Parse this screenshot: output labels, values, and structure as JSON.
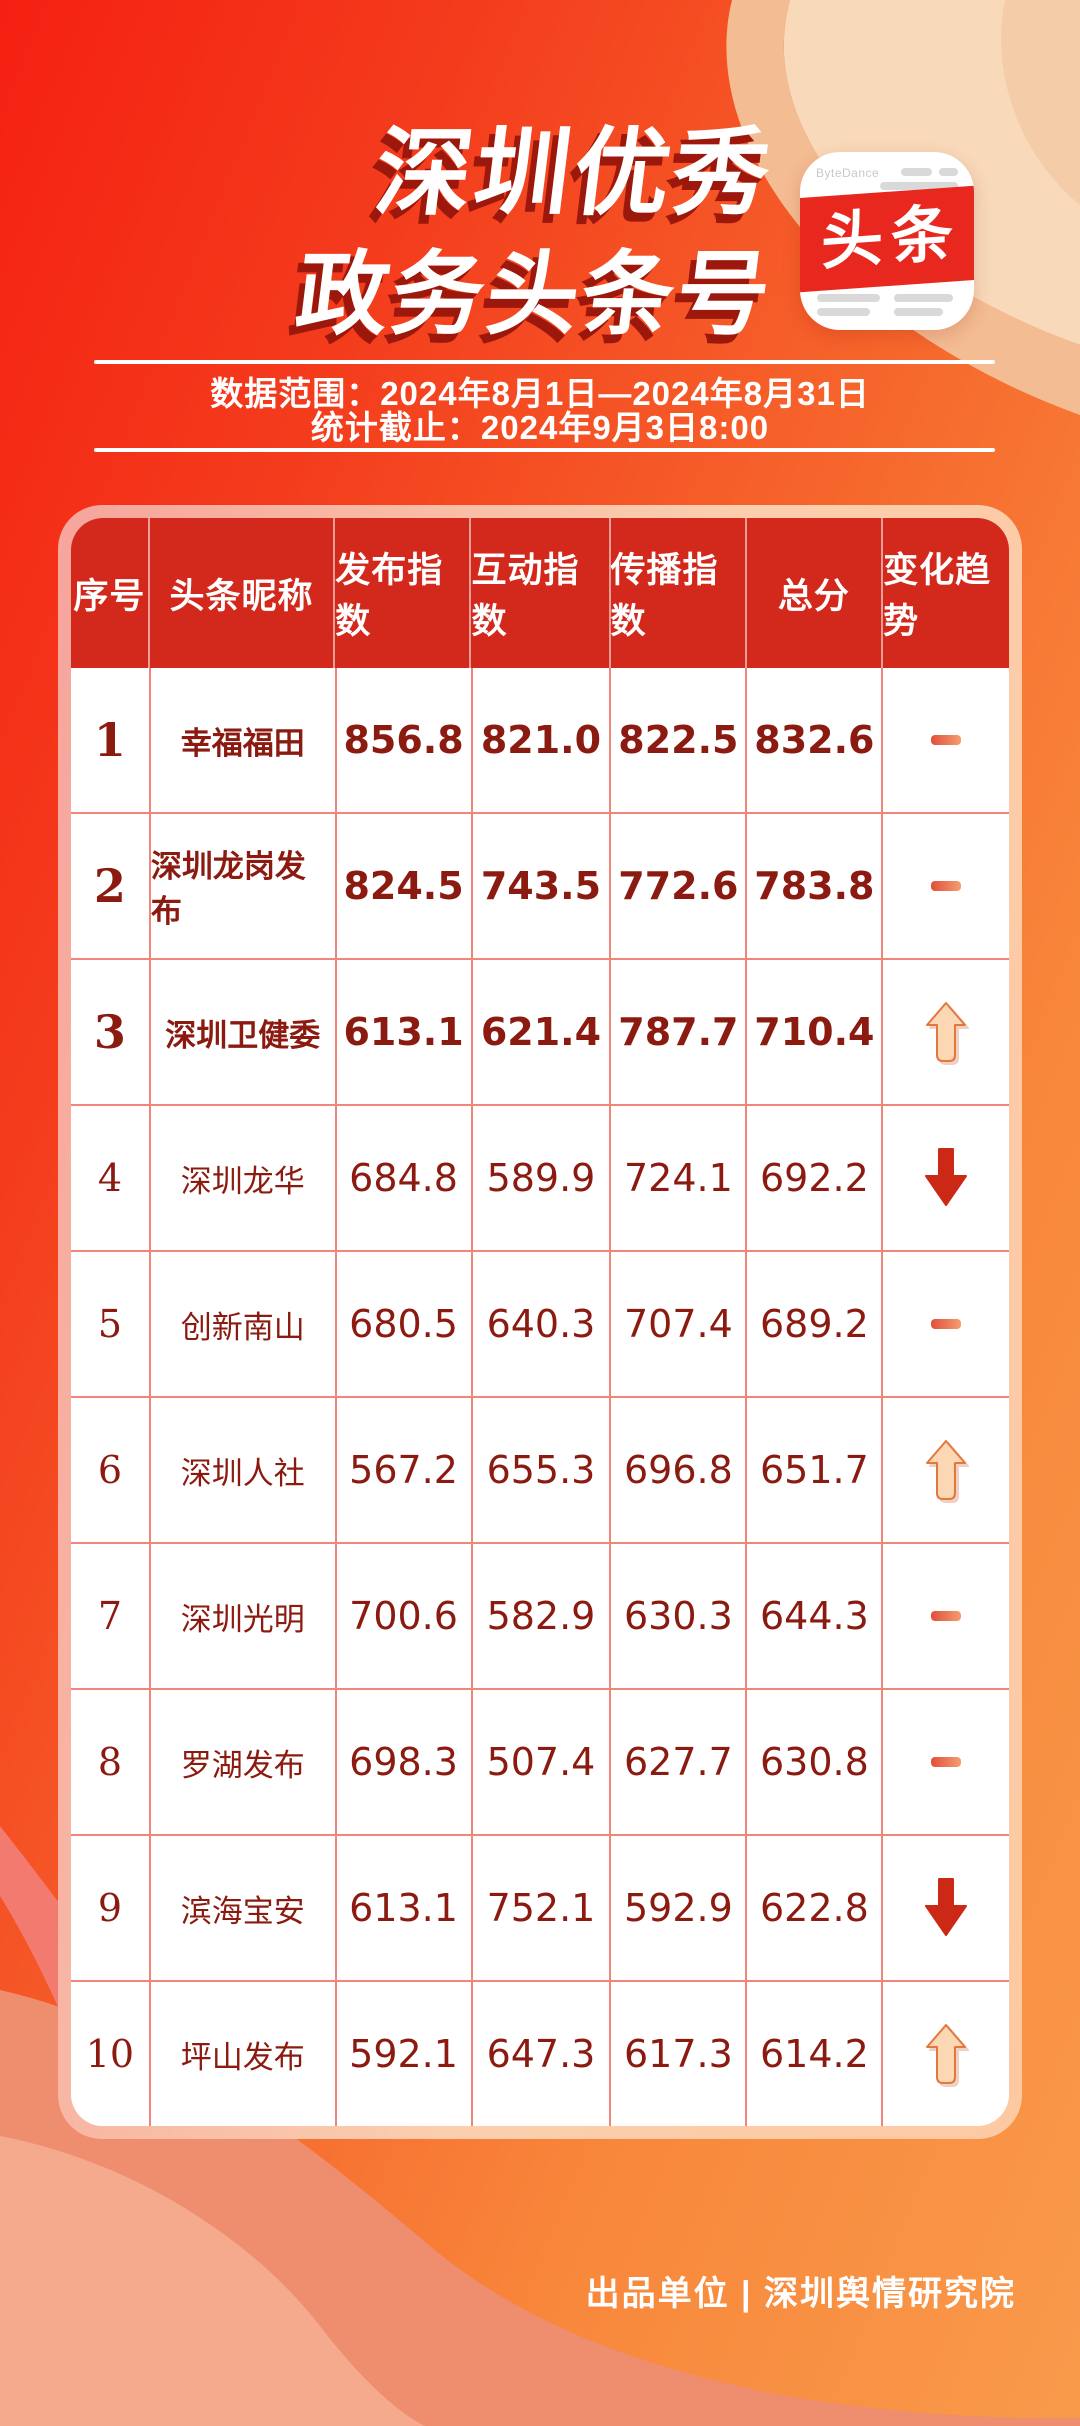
{
  "title": {
    "line1": "深圳优秀",
    "line2": "政务头条号"
  },
  "logo": {
    "badge_text": "头条",
    "brand_text": "ByteDance"
  },
  "meta": {
    "range_label": "数据范围：2024年8月1日—2024年8月31日",
    "cutoff_label": "统计截止：2024年9月3日8:00"
  },
  "chart_data": {
    "type": "table",
    "title": "深圳优秀政务头条号",
    "columns": [
      "序号",
      "头条昵称",
      "发布指数",
      "互动指数",
      "传播指数",
      "总分",
      "变化趋势"
    ],
    "rows": [
      {
        "rank": "1",
        "name": "幸福福田",
        "publish_index": "856.8",
        "interaction_index": "821.0",
        "spread_index": "822.5",
        "total": "832.6",
        "trend": "flat"
      },
      {
        "rank": "2",
        "name": "深圳龙岗发布",
        "publish_index": "824.5",
        "interaction_index": "743.5",
        "spread_index": "772.6",
        "total": "783.8",
        "trend": "flat"
      },
      {
        "rank": "3",
        "name": "深圳卫健委",
        "publish_index": "613.1",
        "interaction_index": "621.4",
        "spread_index": "787.7",
        "total": "710.4",
        "trend": "up"
      },
      {
        "rank": "4",
        "name": "深圳龙华",
        "publish_index": "684.8",
        "interaction_index": "589.9",
        "spread_index": "724.1",
        "total": "692.2",
        "trend": "down"
      },
      {
        "rank": "5",
        "name": "创新南山",
        "publish_index": "680.5",
        "interaction_index": "640.3",
        "spread_index": "707.4",
        "total": "689.2",
        "trend": "flat"
      },
      {
        "rank": "6",
        "name": "深圳人社",
        "publish_index": "567.2",
        "interaction_index": "655.3",
        "spread_index": "696.8",
        "total": "651.7",
        "trend": "up"
      },
      {
        "rank": "7",
        "name": "深圳光明",
        "publish_index": "700.6",
        "interaction_index": "582.9",
        "spread_index": "630.3",
        "total": "644.3",
        "trend": "flat"
      },
      {
        "rank": "8",
        "name": "罗湖发布",
        "publish_index": "698.3",
        "interaction_index": "507.4",
        "spread_index": "627.7",
        "total": "630.8",
        "trend": "flat"
      },
      {
        "rank": "9",
        "name": "滨海宝安",
        "publish_index": "613.1",
        "interaction_index": "752.1",
        "spread_index": "592.9",
        "total": "622.8",
        "trend": "down"
      },
      {
        "rank": "10",
        "name": "坪山发布",
        "publish_index": "592.1",
        "interaction_index": "647.3",
        "spread_index": "617.3",
        "total": "614.2",
        "trend": "up"
      }
    ]
  },
  "footer": {
    "credit": "出品单位 | 深圳舆情研究院"
  },
  "colors": {
    "background_red": "#f52012",
    "background_orange": "#f99a4b",
    "header_red": "#d3291c",
    "icon_band_red": "#e8281e",
    "text_maroon": "#8b1b10",
    "grid_pink": "#f2857a",
    "frame_pink": "#f6a59c",
    "frame_peach": "#fcc9a2",
    "trend_up_fill": "#fbd7b4",
    "trend_up_stroke": "#e2773f",
    "trend_down_red": "#cb2916",
    "trend_flat_gradient_start": "#e0503a",
    "trend_flat_gradient_end": "#f59d72",
    "title_shadow": "#9c170c"
  }
}
